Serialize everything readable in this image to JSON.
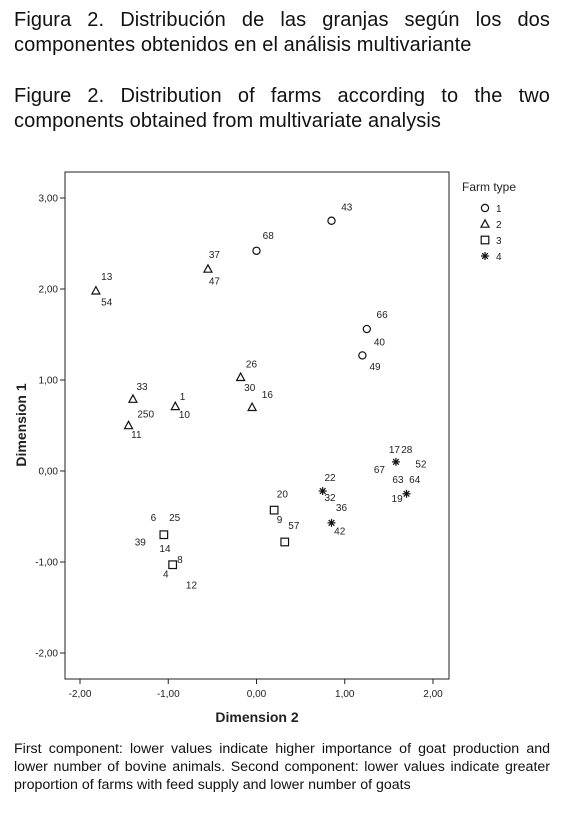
{
  "caption_es": "Figura 2. Distribución de las granjas según los dos componentes obtenidos en el análisis multivariante",
  "caption_en": "Figure 2. Distribution of farms according to the two components obtained from multivariate analysis",
  "note": "First component: lower values indicate higher importance of goat production and lower number of bovine animals. Second component: lower values indicate greater proportion of farms with feed supply and lower number of goats",
  "chart_data": {
    "type": "scatter",
    "xlabel": "Dimension 2",
    "ylabel": "Dimension 1",
    "xlim": [
      -2.3,
      2.15
    ],
    "ylim": [
      -2.3,
      3.05
    ],
    "x_ticks": [
      -2,
      -1,
      0,
      1,
      2
    ],
    "x_tick_labels": [
      "-2,00",
      "-1,00",
      "0,00",
      "1,00",
      "2,00"
    ],
    "y_ticks": [
      -2,
      -1,
      0,
      1,
      2,
      3
    ],
    "y_tick_labels": [
      "-2,00",
      "-1,00",
      "0,00",
      "1,00",
      "2,00",
      "3,00"
    ],
    "grid": false,
    "legend_title": "Farm type",
    "legend_position": "right",
    "series": [
      {
        "name": "1",
        "marker": "circle",
        "points": [
          {
            "x": 0.85,
            "y": 2.75
          },
          {
            "x": 0.0,
            "y": 2.42
          },
          {
            "x": 1.25,
            "y": 1.56
          },
          {
            "x": 1.2,
            "y": 1.27
          }
        ]
      },
      {
        "name": "2",
        "marker": "triangle",
        "points": [
          {
            "x": -0.55,
            "y": 2.22
          },
          {
            "x": -1.82,
            "y": 1.98
          },
          {
            "x": -1.4,
            "y": 0.79
          },
          {
            "x": -0.92,
            "y": 0.71
          },
          {
            "x": -1.45,
            "y": 0.5
          },
          {
            "x": -0.18,
            "y": 1.03
          },
          {
            "x": -0.05,
            "y": 0.7
          }
        ]
      },
      {
        "name": "3",
        "marker": "square",
        "points": [
          {
            "x": -1.05,
            "y": -0.7
          },
          {
            "x": -0.95,
            "y": -1.03
          },
          {
            "x": 0.2,
            "y": -0.43
          },
          {
            "x": 0.32,
            "y": -0.78
          }
        ]
      },
      {
        "name": "4",
        "marker": "star",
        "points": [
          {
            "x": 1.58,
            "y": 0.1
          },
          {
            "x": 1.7,
            "y": -0.25
          },
          {
            "x": 0.75,
            "y": -0.22
          },
          {
            "x": 0.85,
            "y": -0.57
          }
        ]
      }
    ],
    "point_labels": [
      {
        "text": "43",
        "x": 0.96,
        "y": 2.86
      },
      {
        "text": "68",
        "x": 0.07,
        "y": 2.55
      },
      {
        "text": "37",
        "x": -0.54,
        "y": 2.34
      },
      {
        "text": "47",
        "x": -0.54,
        "y": 2.05
      },
      {
        "text": "13",
        "x": -1.76,
        "y": 2.1
      },
      {
        "text": "54",
        "x": -1.76,
        "y": 1.82
      },
      {
        "text": "66",
        "x": 1.36,
        "y": 1.68
      },
      {
        "text": "40",
        "x": 1.33,
        "y": 1.38
      },
      {
        "text": "49",
        "x": 1.28,
        "y": 1.11
      },
      {
        "text": "26",
        "x": -0.12,
        "y": 1.14
      },
      {
        "text": "30",
        "x": -0.14,
        "y": 0.88
      },
      {
        "text": "16",
        "x": 0.06,
        "y": 0.8
      },
      {
        "text": "33",
        "x": -1.36,
        "y": 0.89
      },
      {
        "text": "1",
        "x": -0.87,
        "y": 0.78
      },
      {
        "text": "250",
        "x": -1.35,
        "y": 0.59
      },
      {
        "text": "10",
        "x": -0.88,
        "y": 0.58
      },
      {
        "text": "11",
        "x": -1.42,
        "y": 0.36
      },
      {
        "text": "17",
        "x": 1.5,
        "y": 0.2
      },
      {
        "text": "28",
        "x": 1.64,
        "y": 0.2
      },
      {
        "text": "52",
        "x": 1.8,
        "y": 0.04
      },
      {
        "text": "67",
        "x": 1.33,
        "y": -0.02
      },
      {
        "text": "63",
        "x": 1.54,
        "y": -0.13
      },
      {
        "text": "64",
        "x": 1.73,
        "y": -0.13
      },
      {
        "text": "19",
        "x": 1.53,
        "y": -0.34
      },
      {
        "text": "22",
        "x": 0.77,
        "y": -0.11
      },
      {
        "text": "32",
        "x": 0.77,
        "y": -0.33
      },
      {
        "text": "36",
        "x": 0.9,
        "y": -0.44
      },
      {
        "text": "42",
        "x": 0.88,
        "y": -0.7
      },
      {
        "text": "20",
        "x": 0.23,
        "y": -0.29
      },
      {
        "text": "9",
        "x": 0.23,
        "y": -0.57
      },
      {
        "text": "57",
        "x": 0.36,
        "y": -0.64
      },
      {
        "text": "6",
        "x": -1.2,
        "y": -0.55
      },
      {
        "text": "25",
        "x": -0.99,
        "y": -0.55
      },
      {
        "text": "39",
        "x": -1.38,
        "y": -0.82
      },
      {
        "text": "14",
        "x": -1.1,
        "y": -0.89
      },
      {
        "text": "8",
        "x": -0.9,
        "y": -1.01
      },
      {
        "text": "4",
        "x": -1.06,
        "y": -1.17
      },
      {
        "text": "12",
        "x": -0.8,
        "y": -1.29
      }
    ]
  }
}
